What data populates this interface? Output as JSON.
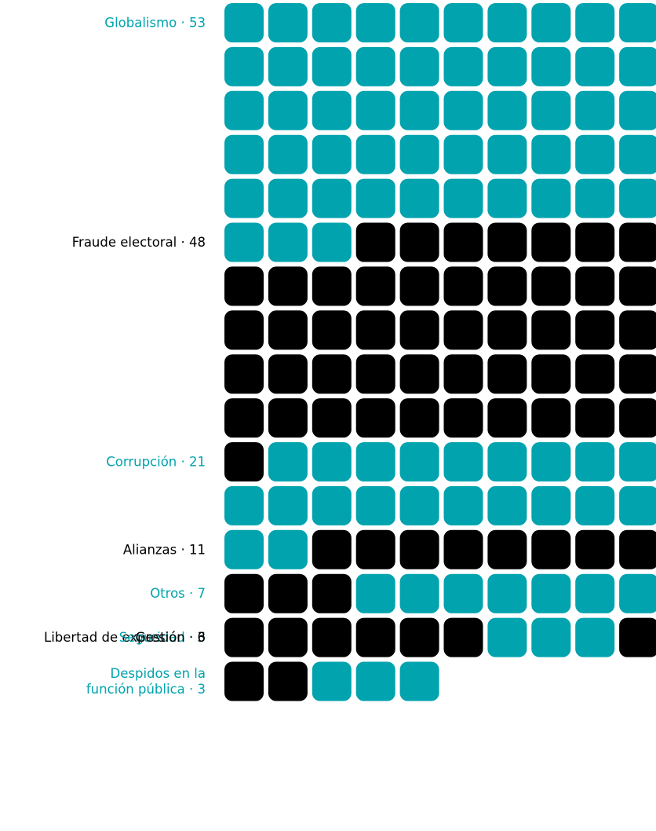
{
  "chart_data": {
    "type": "waffle",
    "columns": 10,
    "colors": {
      "teal": "#00A3AE",
      "black": "#000000"
    },
    "categories": [
      {
        "label": "Globalismo · 53",
        "value": 53,
        "color": "#00A3AE"
      },
      {
        "label": "Fraude electoral · 48",
        "value": 48,
        "color": "#000000"
      },
      {
        "label": "Corrupción · 21",
        "value": 21,
        "color": "#00A3AE"
      },
      {
        "label": "Alianzas · 11",
        "value": 11,
        "color": "#000000"
      },
      {
        "label": "Otros · 7",
        "value": 7,
        "color": "#00A3AE"
      },
      {
        "label": "Libertad de expresión · 6",
        "value": 6,
        "color": "#000000"
      },
      {
        "label": "Seguridad · 3",
        "value": 3,
        "color": "#00A3AE"
      },
      {
        "label": "Gestión · 3",
        "value": 3,
        "color": "#000000"
      },
      {
        "label_lines": [
          "Despidos en la",
          "función pública · 3"
        ],
        "value": 3,
        "color": "#00A3AE"
      }
    ]
  }
}
